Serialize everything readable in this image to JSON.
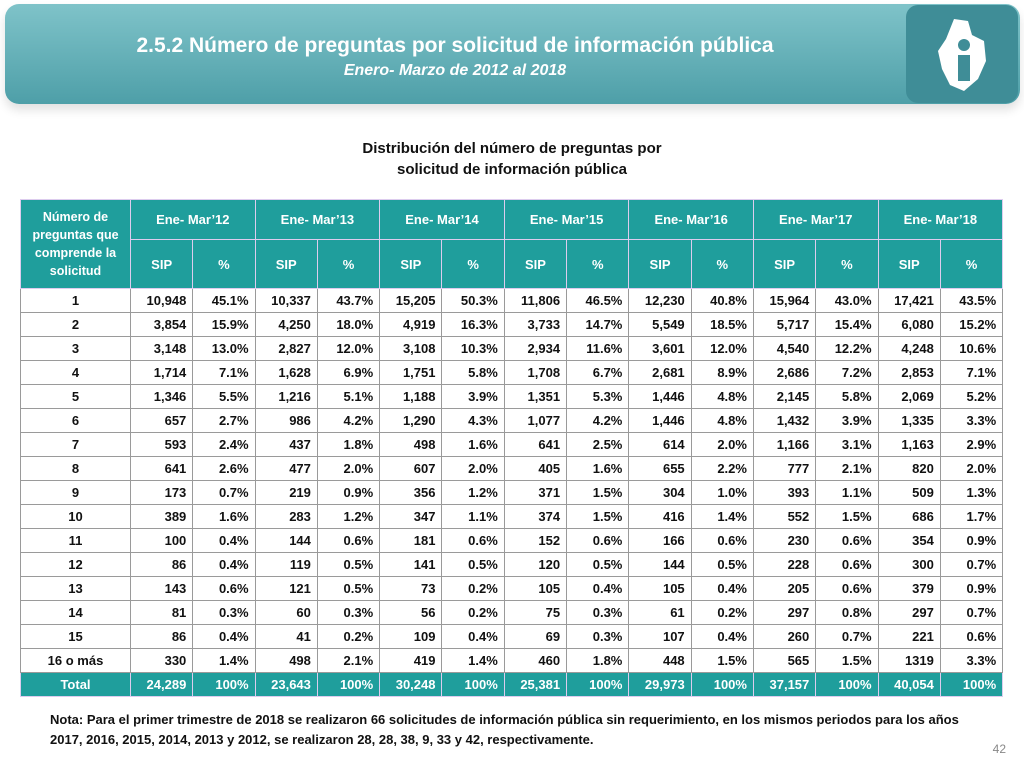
{
  "header": {
    "title": "2.5.2 Número de preguntas por solicitud de información pública",
    "subtitle": "Enero- Marzo de 2012 al 2018"
  },
  "table_title": [
    "Distribución del número de preguntas por",
    "solicitud de información pública"
  ],
  "table": {
    "corner": "Número de preguntas que comprende la solicitud",
    "periods": [
      "Ene- Mar’12",
      "Ene- Mar’13",
      "Ene- Mar’14",
      "Ene- Mar’15",
      "Ene- Mar’16",
      "Ene- Mar’17",
      "Ene- Mar’18"
    ],
    "subheaders": [
      "SIP",
      "%"
    ],
    "rows": [
      [
        "1",
        "10,948",
        "45.1%",
        "10,337",
        "43.7%",
        "15,205",
        "50.3%",
        "11,806",
        "46.5%",
        "12,230",
        "40.8%",
        "15,964",
        "43.0%",
        "17,421",
        "43.5%"
      ],
      [
        "2",
        "3,854",
        "15.9%",
        "4,250",
        "18.0%",
        "4,919",
        "16.3%",
        "3,733",
        "14.7%",
        "5,549",
        "18.5%",
        "5,717",
        "15.4%",
        "6,080",
        "15.2%"
      ],
      [
        "3",
        "3,148",
        "13.0%",
        "2,827",
        "12.0%",
        "3,108",
        "10.3%",
        "2,934",
        "11.6%",
        "3,601",
        "12.0%",
        "4,540",
        "12.2%",
        "4,248",
        "10.6%"
      ],
      [
        "4",
        "1,714",
        "7.1%",
        "1,628",
        "6.9%",
        "1,751",
        "5.8%",
        "1,708",
        "6.7%",
        "2,681",
        "8.9%",
        "2,686",
        "7.2%",
        "2,853",
        "7.1%"
      ],
      [
        "5",
        "1,346",
        "5.5%",
        "1,216",
        "5.1%",
        "1,188",
        "3.9%",
        "1,351",
        "5.3%",
        "1,446",
        "4.8%",
        "2,145",
        "5.8%",
        "2,069",
        "5.2%"
      ],
      [
        "6",
        "657",
        "2.7%",
        "986",
        "4.2%",
        "1,290",
        "4.3%",
        "1,077",
        "4.2%",
        "1,446",
        "4.8%",
        "1,432",
        "3.9%",
        "1,335",
        "3.3%"
      ],
      [
        "7",
        "593",
        "2.4%",
        "437",
        "1.8%",
        "498",
        "1.6%",
        "641",
        "2.5%",
        "614",
        "2.0%",
        "1,166",
        "3.1%",
        "1,163",
        "2.9%"
      ],
      [
        "8",
        "641",
        "2.6%",
        "477",
        "2.0%",
        "607",
        "2.0%",
        "405",
        "1.6%",
        "655",
        "2.2%",
        "777",
        "2.1%",
        "820",
        "2.0%"
      ],
      [
        "9",
        "173",
        "0.7%",
        "219",
        "0.9%",
        "356",
        "1.2%",
        "371",
        "1.5%",
        "304",
        "1.0%",
        "393",
        "1.1%",
        "509",
        "1.3%"
      ],
      [
        "10",
        "389",
        "1.6%",
        "283",
        "1.2%",
        "347",
        "1.1%",
        "374",
        "1.5%",
        "416",
        "1.4%",
        "552",
        "1.5%",
        "686",
        "1.7%"
      ],
      [
        "11",
        "100",
        "0.4%",
        "144",
        "0.6%",
        "181",
        "0.6%",
        "152",
        "0.6%",
        "166",
        "0.6%",
        "230",
        "0.6%",
        "354",
        "0.9%"
      ],
      [
        "12",
        "86",
        "0.4%",
        "119",
        "0.5%",
        "141",
        "0.5%",
        "120",
        "0.5%",
        "144",
        "0.5%",
        "228",
        "0.6%",
        "300",
        "0.7%"
      ],
      [
        "13",
        "143",
        "0.6%",
        "121",
        "0.5%",
        "73",
        "0.2%",
        "105",
        "0.4%",
        "105",
        "0.4%",
        "205",
        "0.6%",
        "379",
        "0.9%"
      ],
      [
        "14",
        "81",
        "0.3%",
        "60",
        "0.3%",
        "56",
        "0.2%",
        "75",
        "0.3%",
        "61",
        "0.2%",
        "297",
        "0.8%",
        "297",
        "0.7%"
      ],
      [
        "15",
        "86",
        "0.4%",
        "41",
        "0.2%",
        "109",
        "0.4%",
        "69",
        "0.3%",
        "107",
        "0.4%",
        "260",
        "0.7%",
        "221",
        "0.6%"
      ],
      [
        "16 o más",
        "330",
        "1.4%",
        "498",
        "2.1%",
        "419",
        "1.4%",
        "460",
        "1.8%",
        "448",
        "1.5%",
        "565",
        "1.5%",
        "1319",
        "3.3%"
      ]
    ],
    "total": [
      "Total",
      "24,289",
      "100%",
      "23,643",
      "100%",
      "30,248",
      "100%",
      "25,381",
      "100%",
      "29,973",
      "100%",
      "37,157",
      "100%",
      "40,054",
      "100%"
    ]
  },
  "note": "Nota: Para el primer trimestre de 2018 se realizaron 66 solicitudes de información pública sin requerimiento, en los mismos periodos para los años 2017, 2016, 2015, 2014, 2013 y 2012, se realizaron 28, 28, 38, 9, 33 y 42, respectivamente.",
  "page_number": "42"
}
